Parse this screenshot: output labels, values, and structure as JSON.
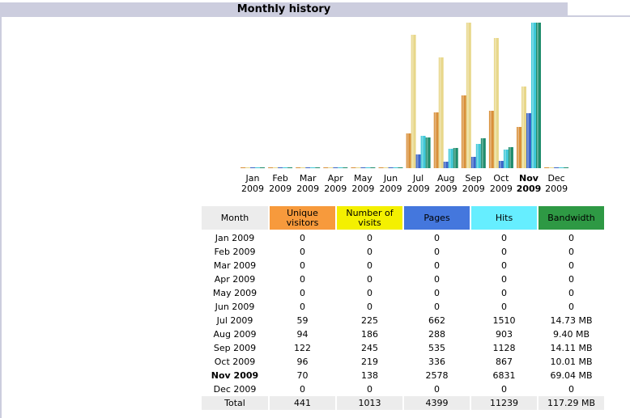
{
  "title": "Monthly history",
  "colors": {
    "unique": "#f79a3c",
    "visits": "#f4f000",
    "pages": "#4477dd",
    "hits": "#66eeff",
    "bandwidth": "#2e9944",
    "month_header": "#ececec",
    "titlebar": "#cccdde"
  },
  "table": {
    "headers": [
      "Month",
      "Unique visitors",
      "Number of visits",
      "Pages",
      "Hits",
      "Bandwidth"
    ],
    "rows": [
      {
        "month": "Jan 2009",
        "unique": "0",
        "visits": "0",
        "pages": "0",
        "hits": "0",
        "bandwidth": "0"
      },
      {
        "month": "Feb 2009",
        "unique": "0",
        "visits": "0",
        "pages": "0",
        "hits": "0",
        "bandwidth": "0"
      },
      {
        "month": "Mar 2009",
        "unique": "0",
        "visits": "0",
        "pages": "0",
        "hits": "0",
        "bandwidth": "0"
      },
      {
        "month": "Apr 2009",
        "unique": "0",
        "visits": "0",
        "pages": "0",
        "hits": "0",
        "bandwidth": "0"
      },
      {
        "month": "May 2009",
        "unique": "0",
        "visits": "0",
        "pages": "0",
        "hits": "0",
        "bandwidth": "0"
      },
      {
        "month": "Jun 2009",
        "unique": "0",
        "visits": "0",
        "pages": "0",
        "hits": "0",
        "bandwidth": "0"
      },
      {
        "month": "Jul 2009",
        "unique": "59",
        "visits": "225",
        "pages": "662",
        "hits": "1510",
        "bandwidth": "14.73 MB"
      },
      {
        "month": "Aug 2009",
        "unique": "94",
        "visits": "186",
        "pages": "288",
        "hits": "903",
        "bandwidth": "9.40 MB"
      },
      {
        "month": "Sep 2009",
        "unique": "122",
        "visits": "245",
        "pages": "535",
        "hits": "1128",
        "bandwidth": "14.11 MB"
      },
      {
        "month": "Oct 2009",
        "unique": "96",
        "visits": "219",
        "pages": "336",
        "hits": "867",
        "bandwidth": "10.01 MB"
      },
      {
        "month": "Nov 2009",
        "unique": "70",
        "visits": "138",
        "pages": "2578",
        "hits": "6831",
        "bandwidth": "69.04 MB",
        "current": true
      },
      {
        "month": "Dec 2009",
        "unique": "0",
        "visits": "0",
        "pages": "0",
        "hits": "0",
        "bandwidth": "0"
      }
    ],
    "total": {
      "month": "Total",
      "unique": "441",
      "visits": "1013",
      "pages": "4399",
      "hits": "11239",
      "bandwidth": "117.29 MB"
    }
  },
  "chart_data": {
    "type": "bar",
    "title": "Monthly history",
    "categories": [
      "Jan 2009",
      "Feb 2009",
      "Mar 2009",
      "Apr 2009",
      "May 2009",
      "Jun 2009",
      "Jul 2009",
      "Aug 2009",
      "Sep 2009",
      "Oct 2009",
      "Nov 2009",
      "Dec 2009"
    ],
    "category_labels": [
      [
        "Jan",
        "2009"
      ],
      [
        "Feb",
        "2009"
      ],
      [
        "Mar",
        "2009"
      ],
      [
        "Apr",
        "2009"
      ],
      [
        "May",
        "2009"
      ],
      [
        "Jun",
        "2009"
      ],
      [
        "Jul",
        "2009"
      ],
      [
        "Aug",
        "2009"
      ],
      [
        "Sep",
        "2009"
      ],
      [
        "Oct",
        "2009"
      ],
      [
        "Nov",
        "2009"
      ],
      [
        "Dec",
        "2009"
      ]
    ],
    "highlighted_category": "Nov 2009",
    "series": [
      {
        "name": "Unique visitors",
        "key": "unique",
        "values": [
          0,
          0,
          0,
          0,
          0,
          0,
          59,
          94,
          122,
          96,
          70,
          0
        ],
        "scale_group": "visits"
      },
      {
        "name": "Number of visits",
        "key": "visits",
        "values": [
          0,
          0,
          0,
          0,
          0,
          0,
          225,
          186,
          245,
          219,
          138,
          0
        ],
        "scale_group": "visits"
      },
      {
        "name": "Pages",
        "key": "pages",
        "values": [
          0,
          0,
          0,
          0,
          0,
          0,
          662,
          288,
          535,
          336,
          2578,
          0
        ],
        "scale_group": "hits"
      },
      {
        "name": "Hits",
        "key": "hits",
        "values": [
          0,
          0,
          0,
          0,
          0,
          0,
          1510,
          903,
          1128,
          867,
          6831,
          0
        ],
        "scale_group": "hits"
      },
      {
        "name": "Bandwidth (MB)",
        "key": "bandwidth",
        "values": [
          0,
          0,
          0,
          0,
          0,
          0,
          14.73,
          9.4,
          14.11,
          10.01,
          69.04,
          0
        ],
        "scale_group": "bandwidth"
      }
    ],
    "bar_colors": [
      "#d9903a",
      "#e8d78a",
      "#3a64c8",
      "#3fc8d8",
      "#1f8c6c"
    ],
    "xlabel": "",
    "ylabel": "",
    "grid": false
  }
}
